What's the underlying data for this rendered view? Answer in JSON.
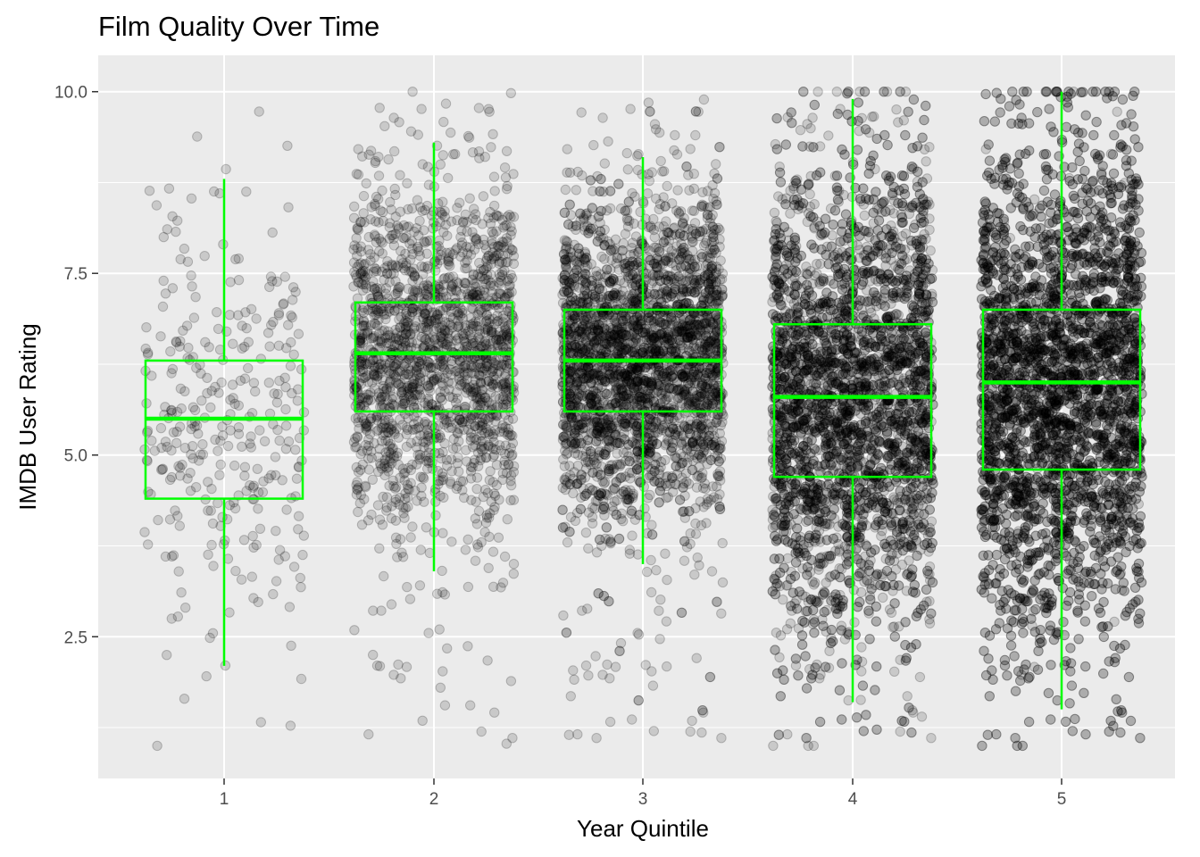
{
  "chart_data": {
    "type": "boxplot",
    "title": "Film Quality Over Time",
    "xlabel": "Year Quintile",
    "ylabel": "IMDB User Rating",
    "categories": [
      "1",
      "2",
      "3",
      "4",
      "5"
    ],
    "ylim": [
      0.55,
      10.5
    ],
    "yticks": [
      2.5,
      5.0,
      7.5,
      10.0
    ],
    "ytick_labels": [
      "2.5",
      "5.0",
      "7.5",
      "10.0"
    ],
    "grid": true,
    "legend": "none",
    "colors": {
      "panel": "#ebebeb",
      "grid": "#ffffff",
      "box": "#00ff00",
      "points": "#000000"
    },
    "points_overlay": "jittered semi-transparent points",
    "boxes": [
      {
        "category": "1",
        "whisker_low": 2.1,
        "q1": 4.4,
        "median": 5.5,
        "q3": 6.3,
        "whisker_high": 8.8,
        "point_density": "sparse"
      },
      {
        "category": "2",
        "whisker_low": 3.4,
        "q1": 5.6,
        "median": 6.4,
        "q3": 7.1,
        "whisker_high": 9.3,
        "point_density": "medium"
      },
      {
        "category": "3",
        "whisker_low": 3.5,
        "q1": 5.6,
        "median": 6.3,
        "q3": 7.0,
        "whisker_high": 9.1,
        "point_density": "dense"
      },
      {
        "category": "4",
        "whisker_low": 1.6,
        "q1": 4.7,
        "median": 5.8,
        "q3": 6.8,
        "whisker_high": 9.9,
        "point_density": "very dense"
      },
      {
        "category": "5",
        "whisker_low": 1.5,
        "q1": 4.8,
        "median": 6.0,
        "q3": 7.0,
        "whisker_high": 10.0,
        "point_density": "extremely dense"
      }
    ]
  }
}
